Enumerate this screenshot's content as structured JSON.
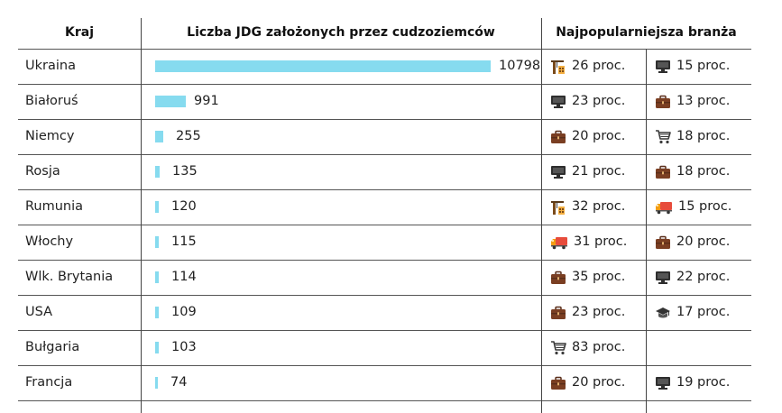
{
  "chart_data": {
    "type": "table",
    "columns": [
      "Kraj",
      "Liczba JDG założonych przez cudzoziemców",
      "Najpopularniejsza branża"
    ],
    "unit": "proc.",
    "bar_color": "#86dbef",
    "rows": [
      {
        "country": "Ukraina",
        "value": 10798,
        "industries": [
          {
            "icon": "construction-icon",
            "percent": 26
          },
          {
            "icon": "computer-icon",
            "percent": 15
          }
        ]
      },
      {
        "country": "Białoruś",
        "value": 991,
        "industries": [
          {
            "icon": "computer-icon",
            "percent": 23
          },
          {
            "icon": "briefcase-icon",
            "percent": 13
          }
        ]
      },
      {
        "country": "Niemcy",
        "value": 255,
        "industries": [
          {
            "icon": "briefcase-icon",
            "percent": 20
          },
          {
            "icon": "shopping-cart-icon",
            "percent": 18
          }
        ]
      },
      {
        "country": "Rosja",
        "value": 135,
        "industries": [
          {
            "icon": "computer-icon",
            "percent": 21
          },
          {
            "icon": "briefcase-icon",
            "percent": 18
          }
        ]
      },
      {
        "country": "Rumunia",
        "value": 120,
        "industries": [
          {
            "icon": "construction-icon",
            "percent": 32
          },
          {
            "icon": "truck-icon",
            "percent": 15
          }
        ]
      },
      {
        "country": "Włochy",
        "value": 115,
        "industries": [
          {
            "icon": "truck-icon",
            "percent": 31
          },
          {
            "icon": "briefcase-icon",
            "percent": 20
          }
        ]
      },
      {
        "country": "Wlk. Brytania",
        "value": 114,
        "industries": [
          {
            "icon": "briefcase-icon",
            "percent": 35
          },
          {
            "icon": "computer-icon",
            "percent": 22
          }
        ]
      },
      {
        "country": "USA",
        "value": 109,
        "industries": [
          {
            "icon": "briefcase-icon",
            "percent": 23
          },
          {
            "icon": "graduation-cap-icon",
            "percent": 17
          }
        ]
      },
      {
        "country": "Bułgaria",
        "value": 103,
        "industries": [
          {
            "icon": "shopping-cart-icon",
            "percent": 83
          }
        ]
      },
      {
        "country": "Francja",
        "value": 74,
        "industries": [
          {
            "icon": "briefcase-icon",
            "percent": 20
          },
          {
            "icon": "computer-icon",
            "percent": 19
          }
        ]
      }
    ]
  }
}
